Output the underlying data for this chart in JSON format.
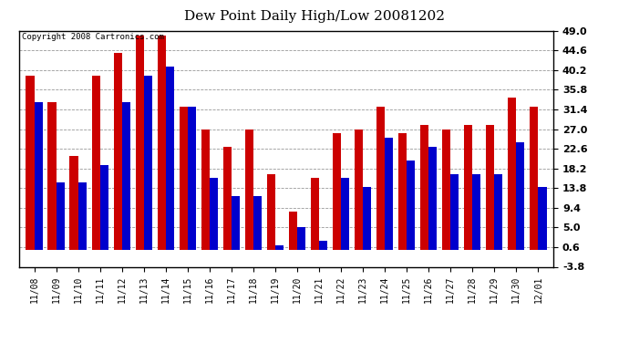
{
  "title": "Dew Point Daily High/Low 20081202",
  "copyright": "Copyright 2008 Cartronics.com",
  "dates": [
    "11/08",
    "11/09",
    "11/10",
    "11/11",
    "11/12",
    "11/13",
    "11/14",
    "11/15",
    "11/16",
    "11/17",
    "11/18",
    "11/19",
    "11/20",
    "11/21",
    "11/22",
    "11/23",
    "11/24",
    "11/25",
    "11/26",
    "11/27",
    "11/28",
    "11/29",
    "11/30",
    "12/01"
  ],
  "highs": [
    39.0,
    33.0,
    21.0,
    39.0,
    44.0,
    48.0,
    48.0,
    32.0,
    27.0,
    23.0,
    27.0,
    17.0,
    8.5,
    16.0,
    26.0,
    27.0,
    32.0,
    26.0,
    28.0,
    27.0,
    28.0,
    28.0,
    34.0,
    32.0
  ],
  "lows": [
    33.0,
    15.0,
    15.0,
    19.0,
    33.0,
    39.0,
    41.0,
    32.0,
    16.0,
    12.0,
    12.0,
    1.0,
    5.0,
    2.0,
    16.0,
    14.0,
    25.0,
    20.0,
    23.0,
    17.0,
    17.0,
    17.0,
    24.0,
    14.0
  ],
  "high_color": "#cc0000",
  "low_color": "#0000cc",
  "background_color": "#ffffff",
  "plot_bg_color": "#ffffff",
  "grid_color": "#999999",
  "yticks": [
    -3.8,
    0.6,
    5.0,
    9.4,
    13.8,
    18.2,
    22.6,
    27.0,
    31.4,
    35.8,
    40.2,
    44.6,
    49.0
  ],
  "ymin": -3.8,
  "ymax": 49.0,
  "bar_width": 0.38,
  "title_fontsize": 11,
  "tick_fontsize": 7,
  "ytick_fontsize": 8,
  "copyright_fontsize": 6.5
}
